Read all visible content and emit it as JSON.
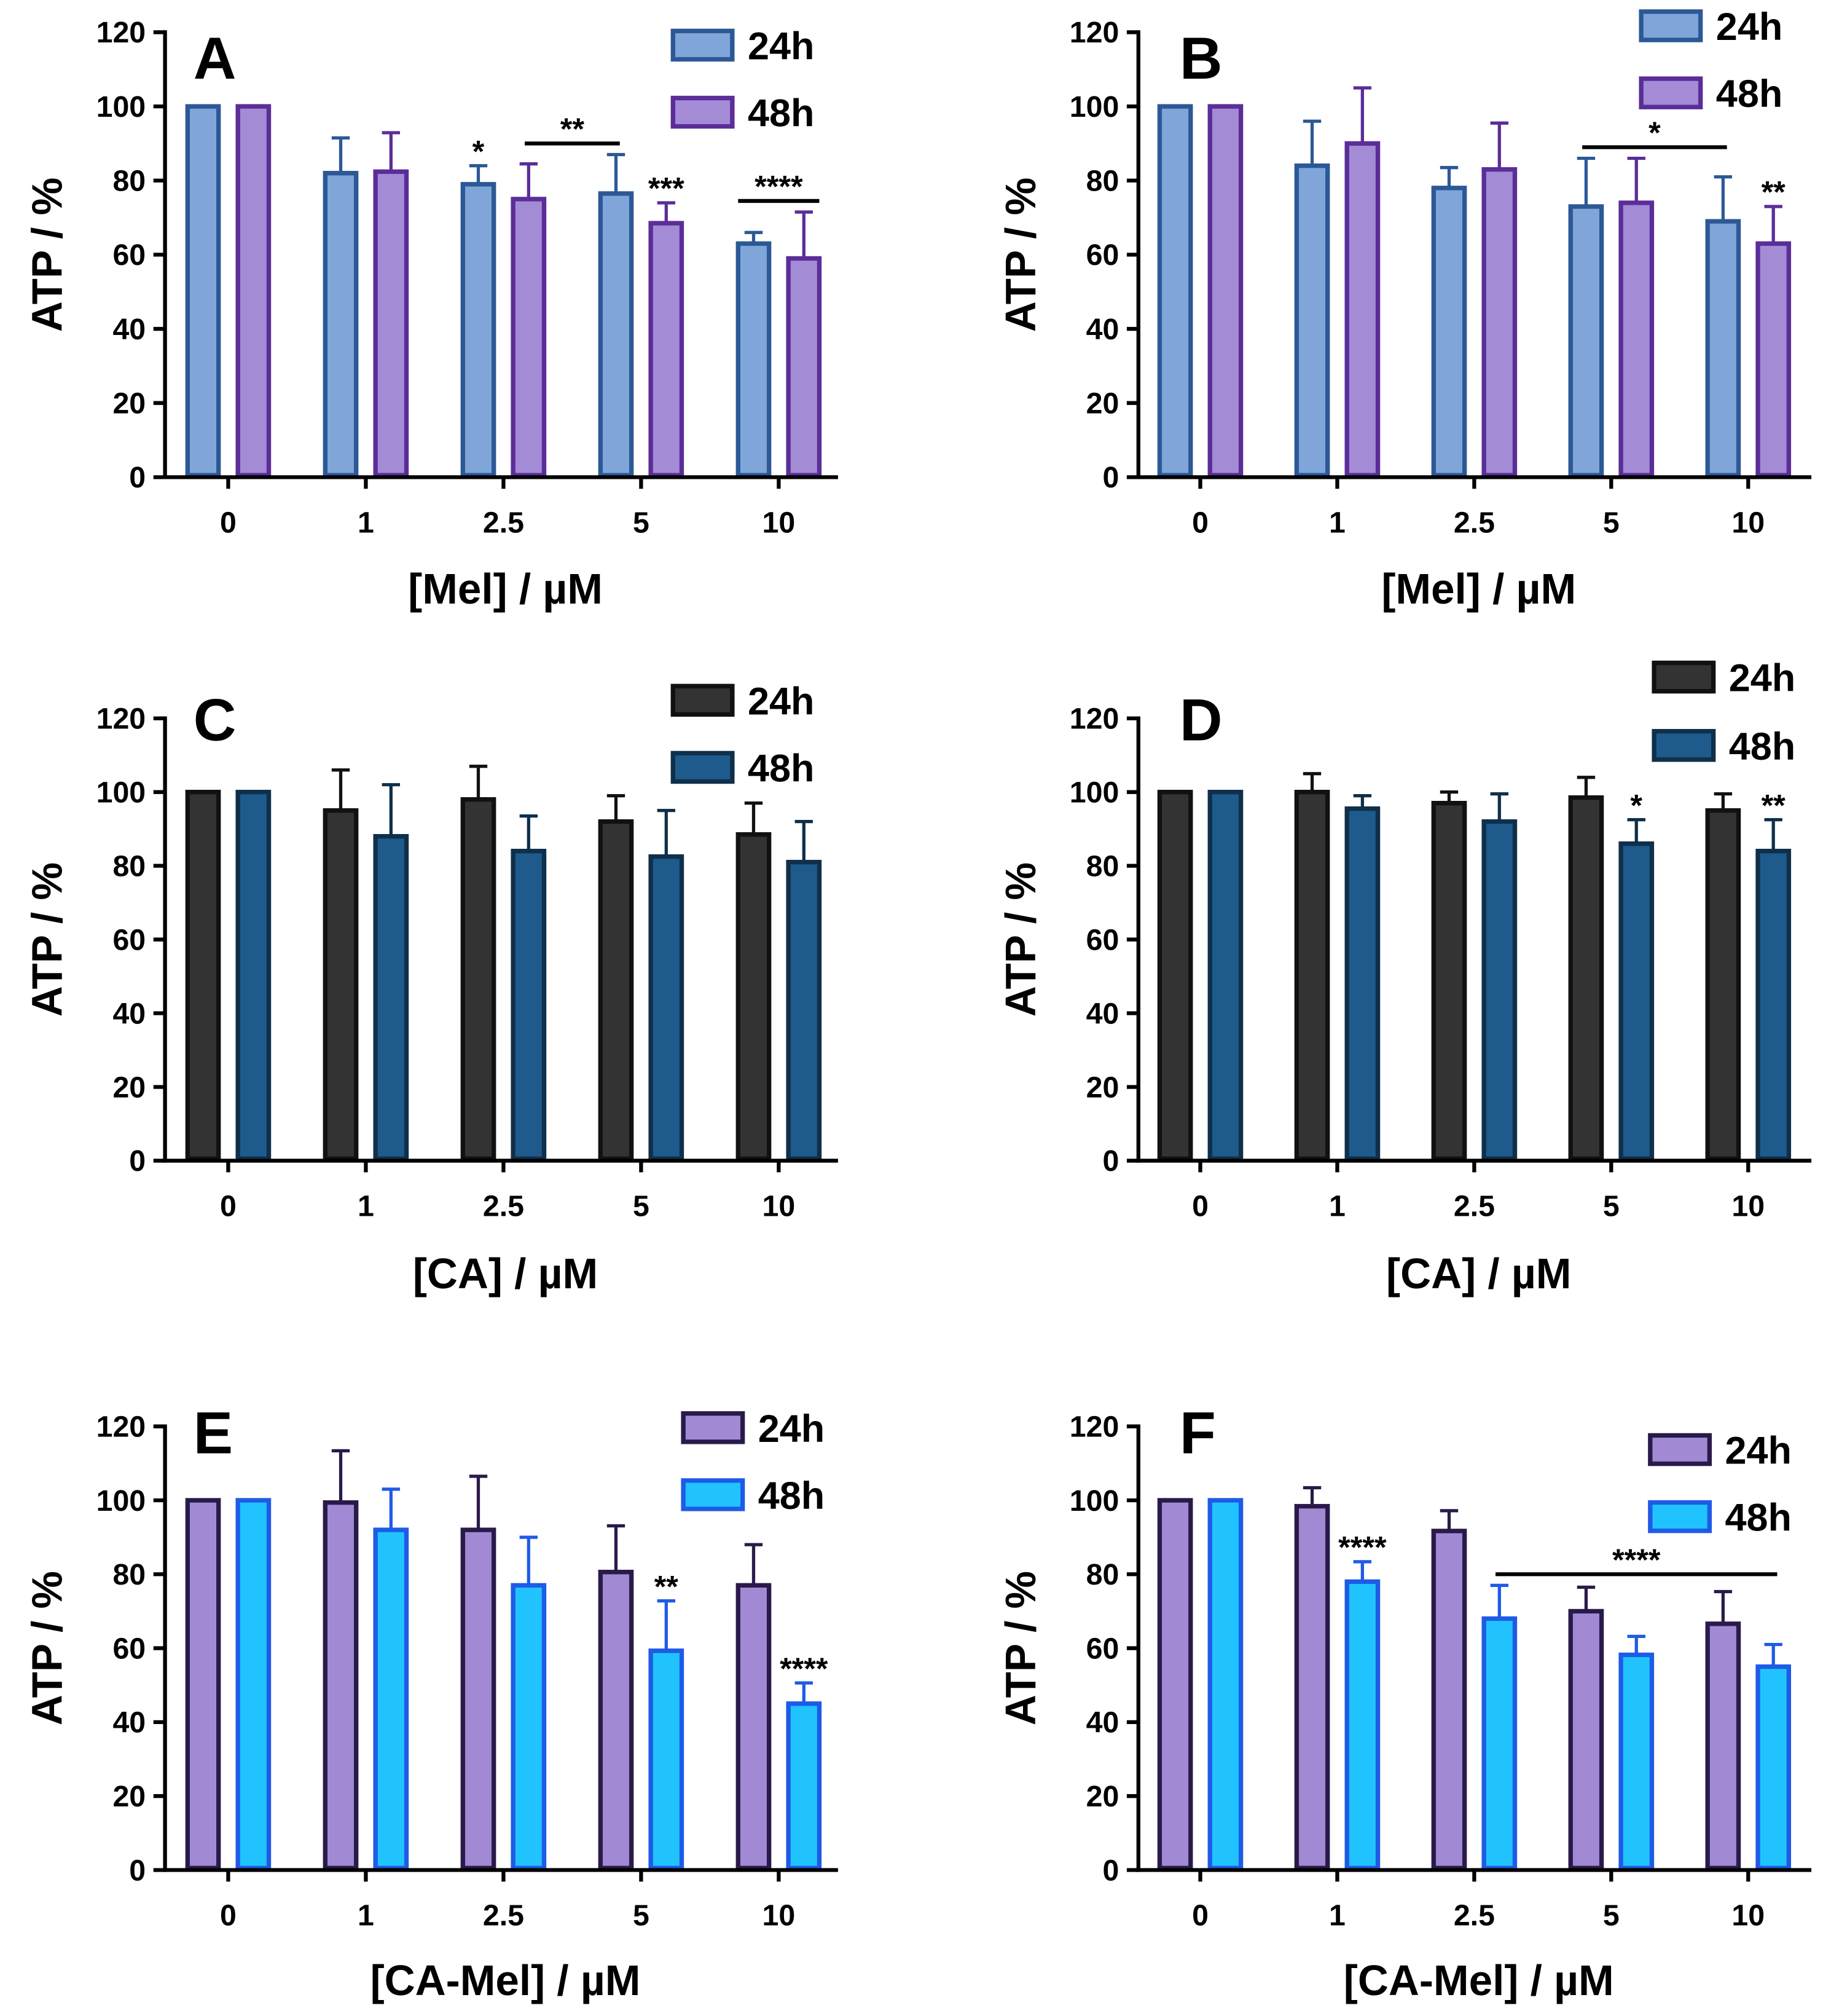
{
  "chart_data": [
    {
      "type": "bar",
      "title": "A",
      "xlabel": "[Mel] / µM",
      "ylabel": "ATP / %",
      "categories": [
        "0",
        "1",
        "2.5",
        "5",
        "10"
      ],
      "ylim": [
        0,
        120
      ],
      "yticks": [
        0,
        20,
        40,
        60,
        80,
        100,
        120
      ],
      "legend_position": "top-right",
      "series": [
        {
          "name": "24h",
          "values": [
            100,
            82,
            79,
            76.5,
            63
          ],
          "errors": [
            0,
            9.5,
            5,
            10.5,
            3
          ],
          "fill": "#7FA5D9",
          "stroke": "#2C5896"
        },
        {
          "name": "48h",
          "values": [
            100,
            82.4,
            75,
            68.5,
            59
          ],
          "errors": [
            0,
            10.5,
            9.5,
            5.5,
            12.5
          ],
          "fill": "#A38BD6",
          "stroke": "#5A2D98"
        }
      ],
      "annotations": [
        {
          "label": "*",
          "category": "2.5",
          "series": "24h"
        },
        {
          "label": "**",
          "span": [
            {
              "category": "2.5",
              "series": "48h"
            },
            {
              "category": "5",
              "series": "24h"
            }
          ]
        },
        {
          "label": "***",
          "category": "5",
          "series": "48h"
        },
        {
          "label": "****",
          "span": [
            {
              "category": "10",
              "series": "24h"
            },
            {
              "category": "10",
              "series": "48h"
            }
          ]
        }
      ]
    },
    {
      "type": "bar",
      "title": "B",
      "xlabel": "[Mel] / µM",
      "ylabel": "ATP / %",
      "categories": [
        "0",
        "1",
        "2.5",
        "5",
        "10"
      ],
      "ylim": [
        0,
        120
      ],
      "yticks": [
        0,
        20,
        40,
        60,
        80,
        100,
        120
      ],
      "legend_position": "top-right",
      "series": [
        {
          "name": "24h",
          "values": [
            100,
            84,
            78,
            73,
            69
          ],
          "errors": [
            0,
            12,
            5.5,
            13,
            12
          ],
          "fill": "#7FA5D9",
          "stroke": "#2C5896"
        },
        {
          "name": "48h",
          "values": [
            100,
            90,
            83,
            74,
            63
          ],
          "errors": [
            0,
            15,
            12.5,
            12,
            10
          ],
          "fill": "#A38BD6",
          "stroke": "#5A2D98"
        }
      ],
      "annotations": [
        {
          "label": "*",
          "span": [
            {
              "category": "5",
              "series": "24h"
            },
            {
              "category": "10",
              "series": "24h"
            }
          ]
        },
        {
          "label": "**",
          "category": "10",
          "series": "48h"
        }
      ]
    },
    {
      "type": "bar",
      "title": "C",
      "xlabel": "[CA] / µM",
      "ylabel": "ATP / %",
      "categories": [
        "0",
        "1",
        "2.5",
        "5",
        "10"
      ],
      "ylim": [
        0,
        120
      ],
      "yticks": [
        0,
        20,
        40,
        60,
        80,
        100,
        120
      ],
      "legend_position": "top-right",
      "series": [
        {
          "name": "24h",
          "values": [
            100,
            95,
            98,
            92,
            88.5
          ],
          "errors": [
            0,
            11,
            9,
            7,
            8.5
          ],
          "fill": "#333333",
          "stroke": "#111111"
        },
        {
          "name": "48h",
          "values": [
            100,
            88,
            84,
            82.5,
            81
          ],
          "errors": [
            0,
            14,
            9.5,
            12.5,
            11
          ],
          "fill": "#1E5B8C",
          "stroke": "#0F2F4A"
        }
      ],
      "annotations": []
    },
    {
      "type": "bar",
      "title": "D",
      "xlabel": "[CA] / µM",
      "ylabel": "ATP / %",
      "categories": [
        "0",
        "1",
        "2.5",
        "5",
        "10"
      ],
      "ylim": [
        0,
        120
      ],
      "yticks": [
        0,
        20,
        40,
        60,
        80,
        100,
        120
      ],
      "legend_position": "top-right",
      "series": [
        {
          "name": "24h",
          "values": [
            100,
            100,
            97,
            98.5,
            95
          ],
          "errors": [
            0,
            5,
            3,
            5.5,
            4.5
          ],
          "fill": "#333333",
          "stroke": "#111111"
        },
        {
          "name": "48h",
          "values": [
            100,
            95.5,
            92,
            86,
            84
          ],
          "errors": [
            0,
            3.5,
            7.5,
            6.5,
            8.5
          ],
          "fill": "#1E5B8C",
          "stroke": "#0F2F4A"
        }
      ],
      "annotations": [
        {
          "label": "*",
          "category": "5",
          "series": "48h"
        },
        {
          "label": "**",
          "category": "10",
          "series": "48h"
        }
      ]
    },
    {
      "type": "bar",
      "title": "E",
      "xlabel": "[CA-Mel] / µM",
      "ylabel": "ATP / %",
      "categories": [
        "0",
        "1",
        "2.5",
        "5",
        "10"
      ],
      "ylim": [
        0,
        120
      ],
      "yticks": [
        0,
        20,
        40,
        60,
        80,
        100,
        120
      ],
      "legend_position": "top-right",
      "series": [
        {
          "name": "24h",
          "values": [
            100,
            99.4,
            92,
            80.6,
            77
          ],
          "errors": [
            0,
            14,
            14.5,
            12.5,
            11
          ],
          "fill": "#A18AD3",
          "stroke": "#2A1A4A"
        },
        {
          "name": "48h",
          "values": [
            100,
            92,
            77,
            59.3,
            45
          ],
          "errors": [
            0,
            11,
            13,
            13.5,
            5.6
          ],
          "fill": "#21C3FF",
          "stroke": "#1E5BE6"
        }
      ],
      "annotations": [
        {
          "label": "**",
          "category": "5",
          "series": "48h"
        },
        {
          "label": "****",
          "category": "10",
          "series": "48h"
        }
      ]
    },
    {
      "type": "bar",
      "title": "F",
      "xlabel": "[CA-Mel] / µM",
      "ylabel": "ATP / %",
      "categories": [
        "0",
        "1",
        "2.5",
        "5",
        "10"
      ],
      "ylim": [
        0,
        120
      ],
      "yticks": [
        0,
        20,
        40,
        60,
        80,
        100,
        120
      ],
      "legend_position": "top-right",
      "series": [
        {
          "name": "24h",
          "values": [
            100,
            98.4,
            91.7,
            70,
            66.6
          ],
          "errors": [
            0,
            5,
            5.5,
            6.5,
            8.7
          ],
          "fill": "#A18AD3",
          "stroke": "#2A1A4A"
        },
        {
          "name": "48h",
          "values": [
            100,
            78,
            68,
            58.2,
            55
          ],
          "errors": [
            0,
            5.4,
            9,
            5,
            6
          ],
          "fill": "#21C3FF",
          "stroke": "#1E5BE6"
        }
      ],
      "annotations": [
        {
          "label": "****",
          "category": "1",
          "series": "48h"
        },
        {
          "label": "****",
          "span": [
            {
              "category": "2.5",
              "series": "48h"
            },
            {
              "category": "10",
              "series": "48h"
            }
          ]
        }
      ]
    }
  ]
}
